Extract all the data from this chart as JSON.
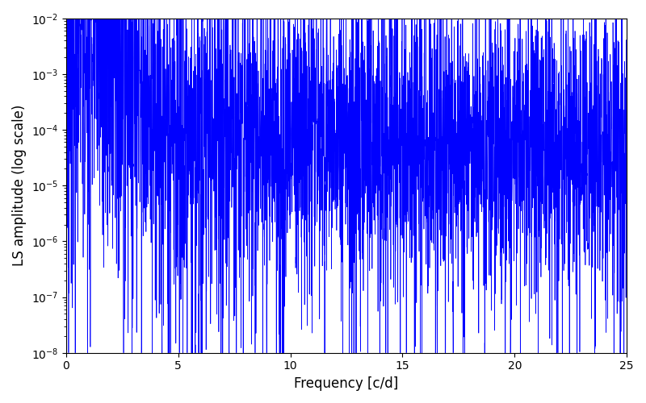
{
  "title": "",
  "xlabel": "Frequency [c/d]",
  "ylabel": "LS amplitude (log scale)",
  "line_color": "#0000FF",
  "line_width": 0.5,
  "xlim": [
    0,
    25
  ],
  "ylim": [
    1e-08,
    0.01
  ],
  "x_ticks": [
    0,
    5,
    10,
    15,
    20,
    25
  ],
  "figsize": [
    8.0,
    5.0
  ],
  "dpi": 100,
  "background_color": "#ffffff",
  "seed": 12345,
  "n_points": 15000,
  "freq_max": 25.0
}
